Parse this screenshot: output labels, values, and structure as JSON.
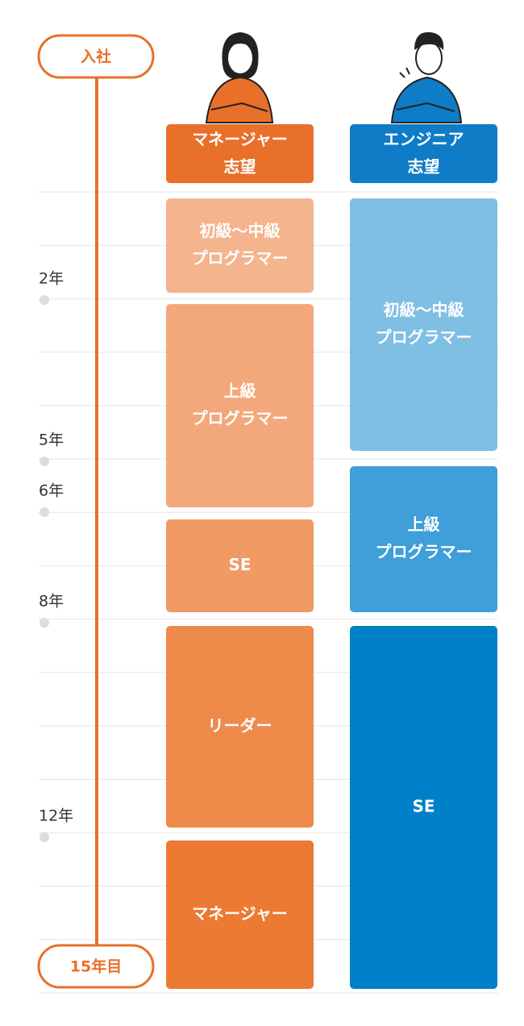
{
  "timeline": {
    "start": "入社",
    "end": "15年目",
    "years": [
      "2年",
      "5年",
      "6年",
      "8年",
      "12年"
    ]
  },
  "columns": [
    {
      "header": [
        "マネージャー",
        "志望"
      ],
      "blocks": [
        {
          "lines": [
            "初級〜中級",
            "プログラマー"
          ]
        },
        {
          "lines": [
            "上級",
            "プログラマー"
          ]
        },
        {
          "lines": [
            "SE"
          ]
        },
        {
          "lines": [
            "リーダー"
          ]
        },
        {
          "lines": [
            "マネージャー"
          ]
        }
      ]
    },
    {
      "header": [
        "エンジニア",
        "志望"
      ],
      "blocks": [
        {
          "lines": [
            "初級〜中級",
            "プログラマー"
          ]
        },
        {
          "lines": [
            "上級",
            "プログラマー"
          ]
        },
        {
          "lines": [
            "SE"
          ]
        }
      ]
    }
  ]
}
